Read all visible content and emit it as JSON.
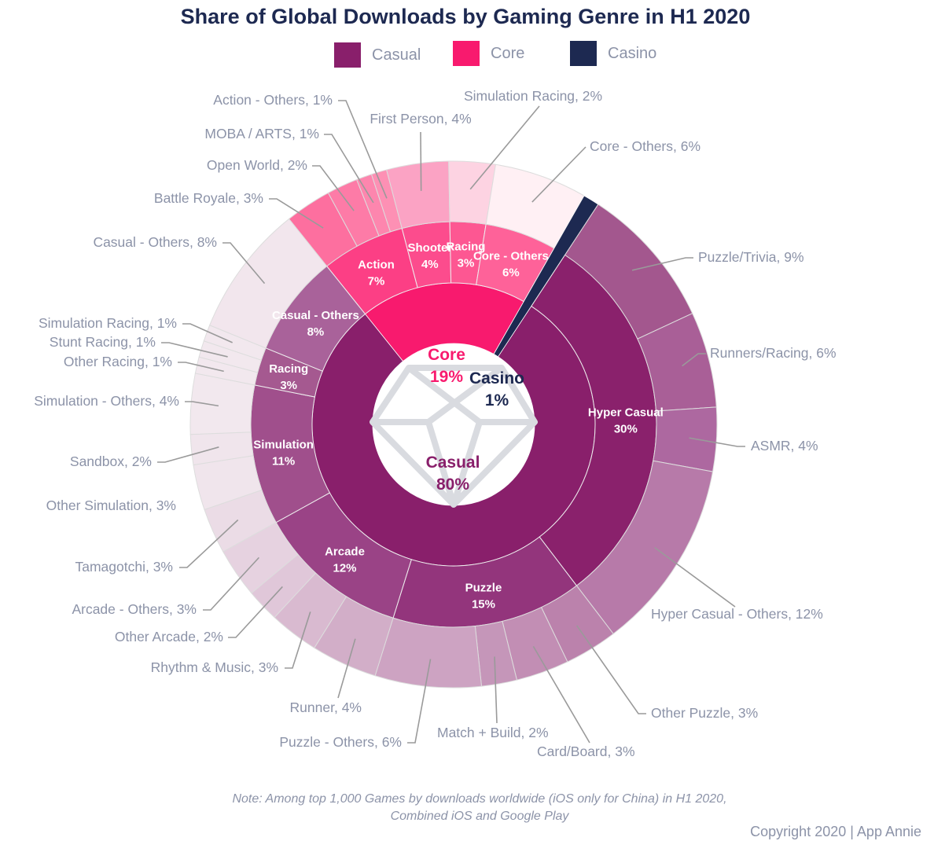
{
  "chart_data": {
    "type": "sunburst",
    "title": "Share of Global Downloads by Gaming Genre in H1 2020",
    "legend": [
      {
        "name": "Casual",
        "color": "#891f6b"
      },
      {
        "name": "Core",
        "color": "#f81a6e"
      },
      {
        "name": "Casino",
        "color": "#1d2951"
      }
    ],
    "unit": "%",
    "nodes": [
      {
        "name": "Core",
        "value": 19,
        "color": "#f81a6e",
        "children": [
          {
            "name": "Action",
            "value": 7,
            "color": "#fc3f85",
            "children": [
              {
                "label": "Battle Royale, 3%",
                "value": 3,
                "color": "#fd6f9f"
              },
              {
                "label": "Open World, 2%",
                "value": 2,
                "color": "#fd7ba7"
              },
              {
                "label": "MOBA / ARTS, 1%",
                "value": 1,
                "color": "#fd86ae"
              },
              {
                "label": "Action - Others, 1%",
                "value": 1,
                "color": "#fd90b4"
              }
            ]
          },
          {
            "name": "Shooter",
            "value": 4,
            "color": "#fc4c8d",
            "children": [
              {
                "label": "First Person, 4%",
                "value": 4,
                "color": "#fba3c4"
              }
            ]
          },
          {
            "name": "Racing",
            "value": 3,
            "color": "#fd5792",
            "children": [
              {
                "label": "Simulation Racing, 2%",
                "value": 2,
                "color": "#fdd3e2"
              }
            ]
          },
          {
            "name": "Core - Others",
            "value": 6,
            "color": "#fe6299",
            "children": [
              {
                "label": "Core - Others, 6%",
                "value": 6,
                "color": "#fff0f4"
              }
            ]
          }
        ]
      },
      {
        "name": "Casino",
        "value": 1,
        "color": "#1d2951",
        "children": []
      },
      {
        "name": "Casual",
        "value": 80,
        "color": "#891f6b",
        "children": [
          {
            "name": "Hyper Casual",
            "value": 30,
            "color": "#8a216c",
            "children": [
              {
                "label": "Puzzle/Trivia, 9%",
                "value": 9,
                "color": "#a3578e"
              },
              {
                "label": "Runners/Racing, 6%",
                "value": 6,
                "color": "#a95f97"
              },
              {
                "label": "ASMR, 4%",
                "value": 4,
                "color": "#ad68a0"
              },
              {
                "label": "Hyper Casual - Others, 12%",
                "value": 12,
                "color": "#b77aa9"
              }
            ]
          },
          {
            "name": "Puzzle",
            "value": 15,
            "color": "#93357c",
            "children": [
              {
                "label": "Other Puzzle, 3%",
                "value": 3,
                "color": "#bb82ac"
              },
              {
                "label": "Card/Board, 3%",
                "value": 3,
                "color": "#c28eb4"
              },
              {
                "label": "Match + Build, 2%",
                "value": 2,
                "color": "#c596b9"
              },
              {
                "label": "Puzzle - Others, 6%",
                "value": 6,
                "color": "#cda3c2"
              }
            ]
          },
          {
            "name": "Arcade",
            "value": 12,
            "color": "#9a4386",
            "children": [
              {
                "label": "Runner, 4%",
                "value": 4,
                "color": "#d2aec8"
              },
              {
                "label": "Rhythm & Music, 3%",
                "value": 3,
                "color": "#d9bad0"
              },
              {
                "label": "Other Arcade, 2%",
                "value": 2,
                "color": "#e0c7d9"
              },
              {
                "label": "Arcade - Others, 3%",
                "value": 3,
                "color": "#e6d2e0"
              }
            ]
          },
          {
            "name": "Simulation",
            "value": 11,
            "color": "#a04f8c",
            "children": [
              {
                "label": "Tamagotchi, 3%",
                "value": 3,
                "color": "#ebdce6"
              },
              {
                "label": "Other Simulation, 3%",
                "value": 3,
                "color": "#f0e5ec"
              },
              {
                "label": "Sandbox, 2%",
                "value": 2,
                "color": "#f0e5ec"
              },
              {
                "label": "Simulation - Others, 4%",
                "value": 4,
                "color": "#f2e8ee"
              }
            ]
          },
          {
            "name": "Racing",
            "value": 3,
            "color": "#a55990",
            "children": [
              {
                "label": "Other Racing, 1%",
                "value": 1,
                "color": "#f2e8ee"
              },
              {
                "label": "Stunt Racing, 1%",
                "value": 1,
                "color": "#f2e8ee"
              },
              {
                "label": "Simulation Racing, 1%",
                "value": 1,
                "color": "#f2e8ee"
              }
            ]
          },
          {
            "name": "Casual - Others",
            "value": 8,
            "color": "#a9629a",
            "children": [
              {
                "label": "Casual - Others, 8%",
                "value": 8,
                "color": "#f2e6ed"
              }
            ]
          }
        ]
      }
    ]
  },
  "footer": {
    "note_line1": "Note: Among top 1,000 Games by downloads worldwide (iOS only for China) in H1 2020,",
    "note_line2": "Combined iOS and Google Play",
    "copyright": "Copyright 2020 | App Annie"
  }
}
